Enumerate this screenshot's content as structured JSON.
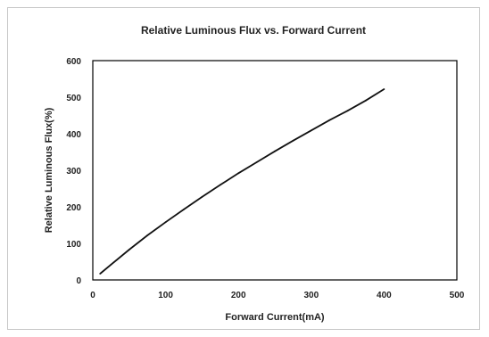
{
  "chart_data": {
    "type": "line",
    "title": "Relative Luminous Flux vs.  Forward  Current",
    "xlabel": "Forward Current(mA)",
    "ylabel": "Relative Luminous  Flux(%)",
    "xlim": [
      0,
      500
    ],
    "ylim": [
      0,
      600
    ],
    "x_ticks": [
      "0",
      "100",
      "200",
      "300",
      "400",
      "500"
    ],
    "y_ticks": [
      "0",
      "100",
      "200",
      "300",
      "400",
      "500",
      "600"
    ],
    "grid": false,
    "legend": "none",
    "line_color": "#111111",
    "series": [
      {
        "x": [
          10,
          25,
          50,
          75,
          100,
          125,
          150,
          175,
          200,
          225,
          250,
          275,
          300,
          325,
          350,
          375,
          400
        ],
        "values": [
          17,
          42,
          83,
          122,
          158,
          193,
          227,
          260,
          292,
          322,
          352,
          381,
          409,
          437,
          463,
          491,
          522
        ]
      }
    ]
  }
}
